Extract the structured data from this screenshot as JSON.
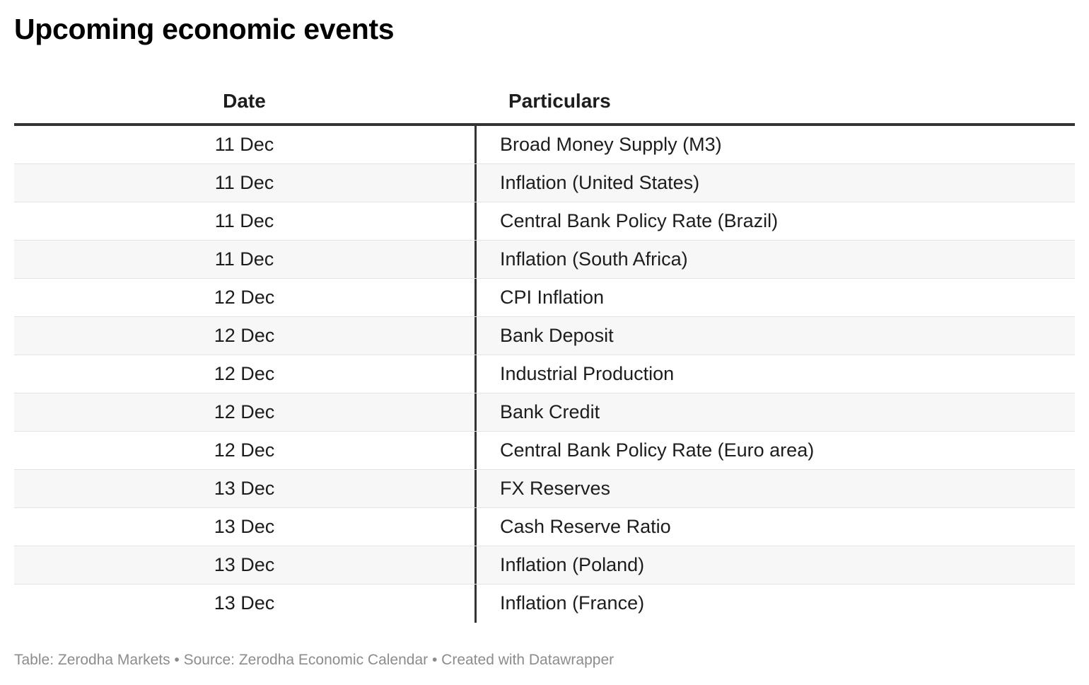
{
  "title": "Upcoming economic events",
  "chart_data": {
    "type": "table",
    "title": "Upcoming economic events",
    "columns": [
      "Date",
      "Particulars"
    ],
    "rows": [
      [
        "11 Dec",
        "Broad Money Supply (M3)"
      ],
      [
        "11 Dec",
        "Inflation (United States)"
      ],
      [
        "11 Dec",
        "Central Bank Policy Rate (Brazil)"
      ],
      [
        "11 Dec",
        "Inflation (South Africa)"
      ],
      [
        "12 Dec",
        "CPI Inflation"
      ],
      [
        "12 Dec",
        "Bank Deposit"
      ],
      [
        "12 Dec",
        "Industrial Production"
      ],
      [
        "12 Dec",
        "Bank Credit"
      ],
      [
        "12 Dec",
        "Central Bank Policy Rate (Euro area)"
      ],
      [
        "13 Dec",
        "FX Reserves"
      ],
      [
        "13 Dec",
        "Cash Reserve Ratio"
      ],
      [
        "13 Dec",
        "Inflation (Poland)"
      ],
      [
        "13 Dec",
        "Inflation (France)"
      ]
    ]
  },
  "footer": "Table: Zerodha Markets • Source: Zerodha Economic Calendar • Created with Datawrapper",
  "colors": {
    "header_rule": "#333333",
    "alt_row": "#f7f7f7",
    "footer_text": "#8c8c8c"
  }
}
